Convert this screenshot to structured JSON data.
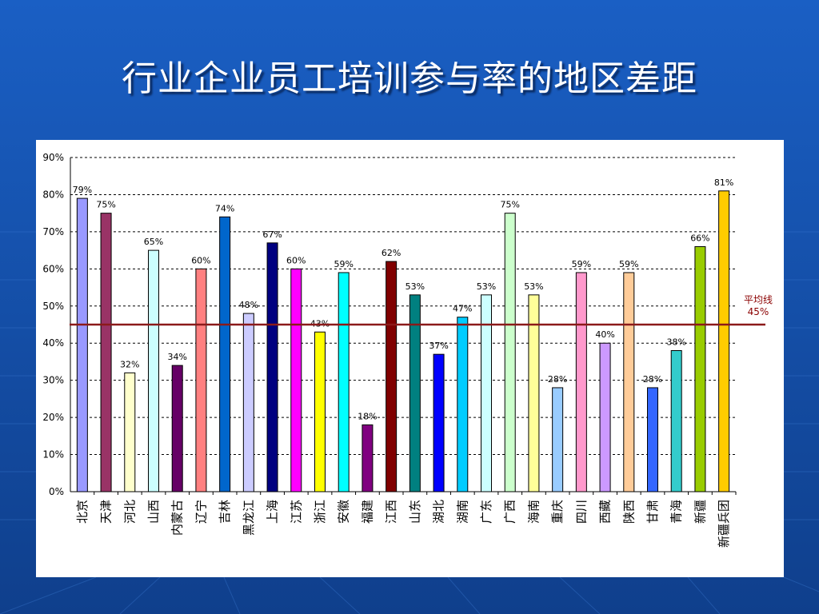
{
  "slide": {
    "title": "行业企业员工培训参与率的地区差距"
  },
  "colors": {
    "background": "#1754b0",
    "avg_line": "#8b1a1a",
    "avg_label": "#8b0000"
  },
  "average_line": {
    "label": "平均线",
    "value_label": "45%",
    "value": 45
  },
  "chart_data": {
    "type": "bar",
    "title": "",
    "xlabel": "",
    "ylabel": "",
    "ylim": [
      0,
      90
    ],
    "yticks": [
      "0%",
      "10%",
      "20%",
      "30%",
      "40%",
      "50%",
      "60%",
      "70%",
      "80%",
      "90%"
    ],
    "grid": true,
    "categories": [
      "北京",
      "天津",
      "河北",
      "山西",
      "内蒙古",
      "辽宁",
      "吉林",
      "黑龙江",
      "上海",
      "江苏",
      "浙江",
      "安徽",
      "福建",
      "江西",
      "山东",
      "湖北",
      "湖南",
      "广东",
      "广西",
      "海南",
      "重庆",
      "四川",
      "西藏",
      "陕西",
      "甘肃",
      "青海",
      "新疆",
      "新疆兵团"
    ],
    "values": [
      79,
      75,
      32,
      65,
      34,
      60,
      74,
      48,
      67,
      60,
      43,
      59,
      18,
      62,
      53,
      37,
      47,
      53,
      75,
      53,
      28,
      59,
      40,
      59,
      28,
      38,
      66,
      81
    ],
    "data_labels": [
      "79%",
      "75%",
      "32%",
      "65%",
      "34%",
      "60%",
      "74%",
      "48%",
      "67%",
      "60%",
      "43%",
      "59%",
      "18%",
      "62%",
      "53%",
      "37%",
      "47%",
      "53%",
      "75%",
      "53%",
      "28%",
      "59%",
      "40%",
      "59%",
      "28%",
      "38%",
      "66%",
      "81%"
    ],
    "bar_colors": [
      "#9999ff",
      "#993366",
      "#ffffcc",
      "#ccffff",
      "#660066",
      "#ff8080",
      "#0066cc",
      "#ccccff",
      "#000080",
      "#ff00ff",
      "#ffff00",
      "#00ffff",
      "#800080",
      "#800000",
      "#008080",
      "#0000ff",
      "#00ccff",
      "#ccffff",
      "#ccffcc",
      "#ffff99",
      "#99ccff",
      "#ff99cc",
      "#cc99ff",
      "#ffcc99",
      "#3366ff",
      "#33cccc",
      "#99cc00",
      "#ffcc00"
    ]
  }
}
